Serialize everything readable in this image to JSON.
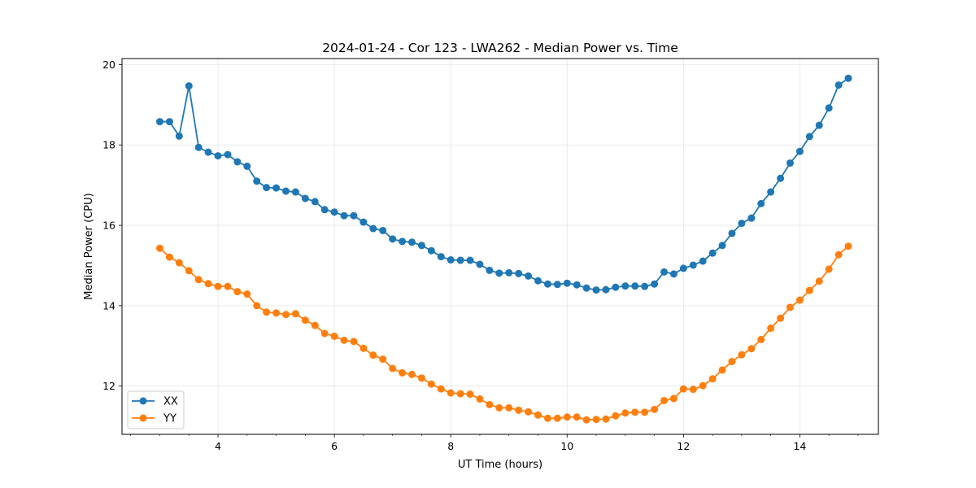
{
  "chart_data": {
    "type": "line",
    "title": "2024-01-24 - Cor 123 - LWA262 - Median Power vs. Time",
    "xlabel": "UT Time (hours)",
    "ylabel": "Median Power (CPU)",
    "xlim": [
      2.35,
      15.35
    ],
    "ylim": [
      10.8,
      20.15
    ],
    "xticks": [
      4,
      6,
      8,
      10,
      12,
      14
    ],
    "xtick_labels": [
      "4",
      "6",
      "8",
      "10",
      "12",
      "14"
    ],
    "yticks": [
      12,
      14,
      16,
      18,
      20
    ],
    "ytick_labels": [
      "12",
      "14",
      "16",
      "18",
      "20"
    ],
    "grid": true,
    "legend": "bottom-left",
    "x": [
      3.0,
      3.167,
      3.333,
      3.5,
      3.667,
      3.833,
      4.0,
      4.167,
      4.333,
      4.5,
      4.667,
      4.833,
      5.0,
      5.167,
      5.333,
      5.5,
      5.667,
      5.833,
      6.0,
      6.167,
      6.333,
      6.5,
      6.667,
      6.833,
      7.0,
      7.167,
      7.333,
      7.5,
      7.667,
      7.833,
      8.0,
      8.167,
      8.333,
      8.5,
      8.667,
      8.833,
      9.0,
      9.167,
      9.333,
      9.5,
      9.667,
      9.833,
      10.0,
      10.167,
      10.333,
      10.5,
      10.667,
      10.833,
      11.0,
      11.167,
      11.333,
      11.5,
      11.667,
      11.833,
      12.0,
      12.167,
      12.333,
      12.5,
      12.667,
      12.833,
      13.0,
      13.167,
      13.333,
      13.5,
      13.667,
      13.833,
      14.0,
      14.167,
      14.333,
      14.5,
      14.667,
      14.833
    ],
    "series": [
      {
        "name": "XX",
        "color": "#1f77b4",
        "values": [
          18.58,
          18.58,
          18.22,
          19.47,
          17.94,
          17.82,
          17.73,
          17.76,
          17.58,
          17.47,
          17.1,
          16.94,
          16.93,
          16.85,
          16.83,
          16.67,
          16.59,
          16.39,
          16.33,
          16.24,
          16.24,
          16.08,
          15.92,
          15.87,
          15.66,
          15.6,
          15.58,
          15.5,
          15.37,
          15.22,
          15.14,
          15.13,
          15.13,
          15.03,
          14.88,
          14.81,
          14.82,
          14.8,
          14.74,
          14.62,
          14.54,
          14.53,
          14.56,
          14.52,
          14.44,
          14.39,
          14.4,
          14.46,
          14.49,
          14.49,
          14.48,
          14.54,
          14.84,
          14.79,
          14.93,
          15.01,
          15.11,
          15.31,
          15.5,
          15.8,
          16.05,
          16.18,
          16.54,
          16.83,
          17.17,
          17.55,
          17.84,
          18.21,
          18.49,
          18.92,
          19.49,
          19.66
        ]
      },
      {
        "name": "YY",
        "color": "#ff7f0e",
        "values": [
          15.43,
          15.21,
          15.07,
          14.87,
          14.65,
          14.55,
          14.48,
          14.48,
          14.35,
          14.29,
          14.0,
          13.84,
          13.82,
          13.78,
          13.8,
          13.64,
          13.51,
          13.31,
          13.24,
          13.14,
          13.11,
          12.94,
          12.77,
          12.67,
          12.44,
          12.33,
          12.29,
          12.2,
          12.05,
          11.93,
          11.83,
          11.81,
          11.8,
          11.68,
          11.54,
          11.46,
          11.46,
          11.4,
          11.36,
          11.28,
          11.2,
          11.2,
          11.23,
          11.23,
          11.16,
          11.17,
          11.18,
          11.26,
          11.33,
          11.35,
          11.35,
          11.42,
          11.64,
          11.69,
          11.93,
          11.92,
          12.01,
          12.18,
          12.4,
          12.61,
          12.78,
          12.93,
          13.16,
          13.44,
          13.69,
          13.96,
          14.14,
          14.38,
          14.61,
          14.91,
          15.27,
          15.48
        ]
      }
    ]
  }
}
